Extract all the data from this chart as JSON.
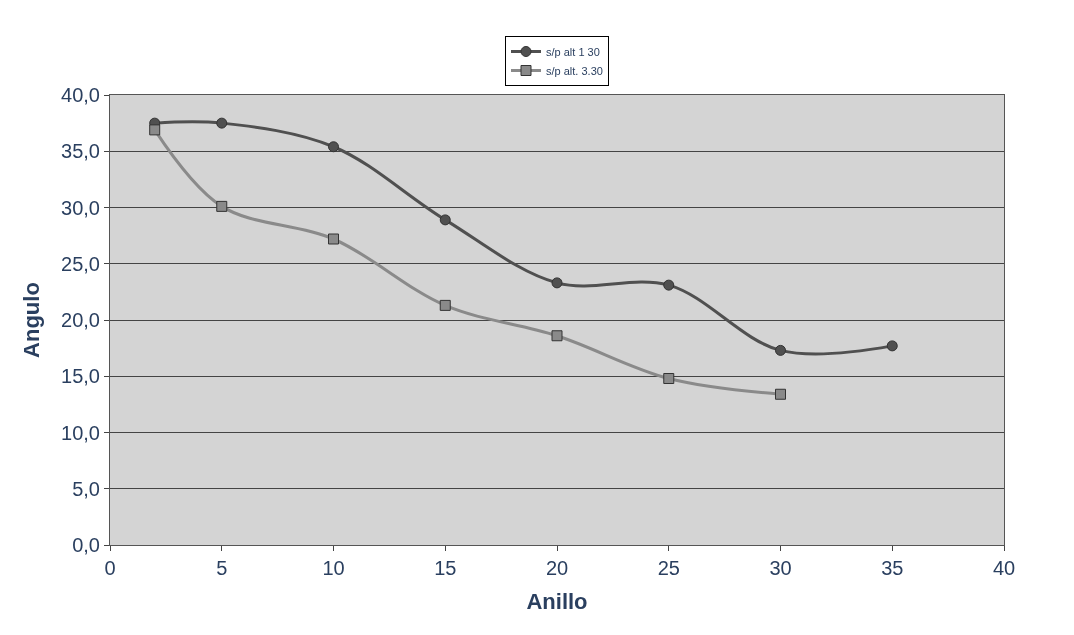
{
  "chart_data": {
    "type": "line",
    "xlabel": "Anillo",
    "ylabel": "Angulo",
    "xlim": [
      0,
      40
    ],
    "xticks": [
      0,
      5,
      10,
      15,
      20,
      25,
      30,
      35,
      40
    ],
    "ylim": [
      0,
      40
    ],
    "yticks": [
      {
        "value": 0,
        "label": "0,0"
      },
      {
        "value": 5,
        "label": "5,0"
      },
      {
        "value": 10,
        "label": "10,0"
      },
      {
        "value": 15,
        "label": "15,0"
      },
      {
        "value": 20,
        "label": "20,0"
      },
      {
        "value": 25,
        "label": "25,0"
      },
      {
        "value": 30,
        "label": "30,0"
      },
      {
        "value": 35,
        "label": "35,0"
      },
      {
        "value": 40,
        "label": "40,0"
      }
    ],
    "grid": "y",
    "legend": "top",
    "line_style": "solid",
    "series": [
      {
        "name": "s/p alt 1 30",
        "color": "#505050",
        "marker": "circle",
        "x": [
          2,
          5,
          10,
          15,
          20,
          25,
          30,
          35
        ],
        "values": [
          37.5,
          37.5,
          35.4,
          28.9,
          23.3,
          23.1,
          17.3,
          17.7
        ]
      },
      {
        "name": "s/p alt. 3.30",
        "color": "#8a8a8a",
        "marker": "square",
        "x": [
          2,
          5,
          10,
          15,
          20,
          25,
          30
        ],
        "values": [
          36.9,
          30.1,
          27.2,
          21.3,
          18.6,
          14.8,
          13.4
        ]
      }
    ]
  }
}
